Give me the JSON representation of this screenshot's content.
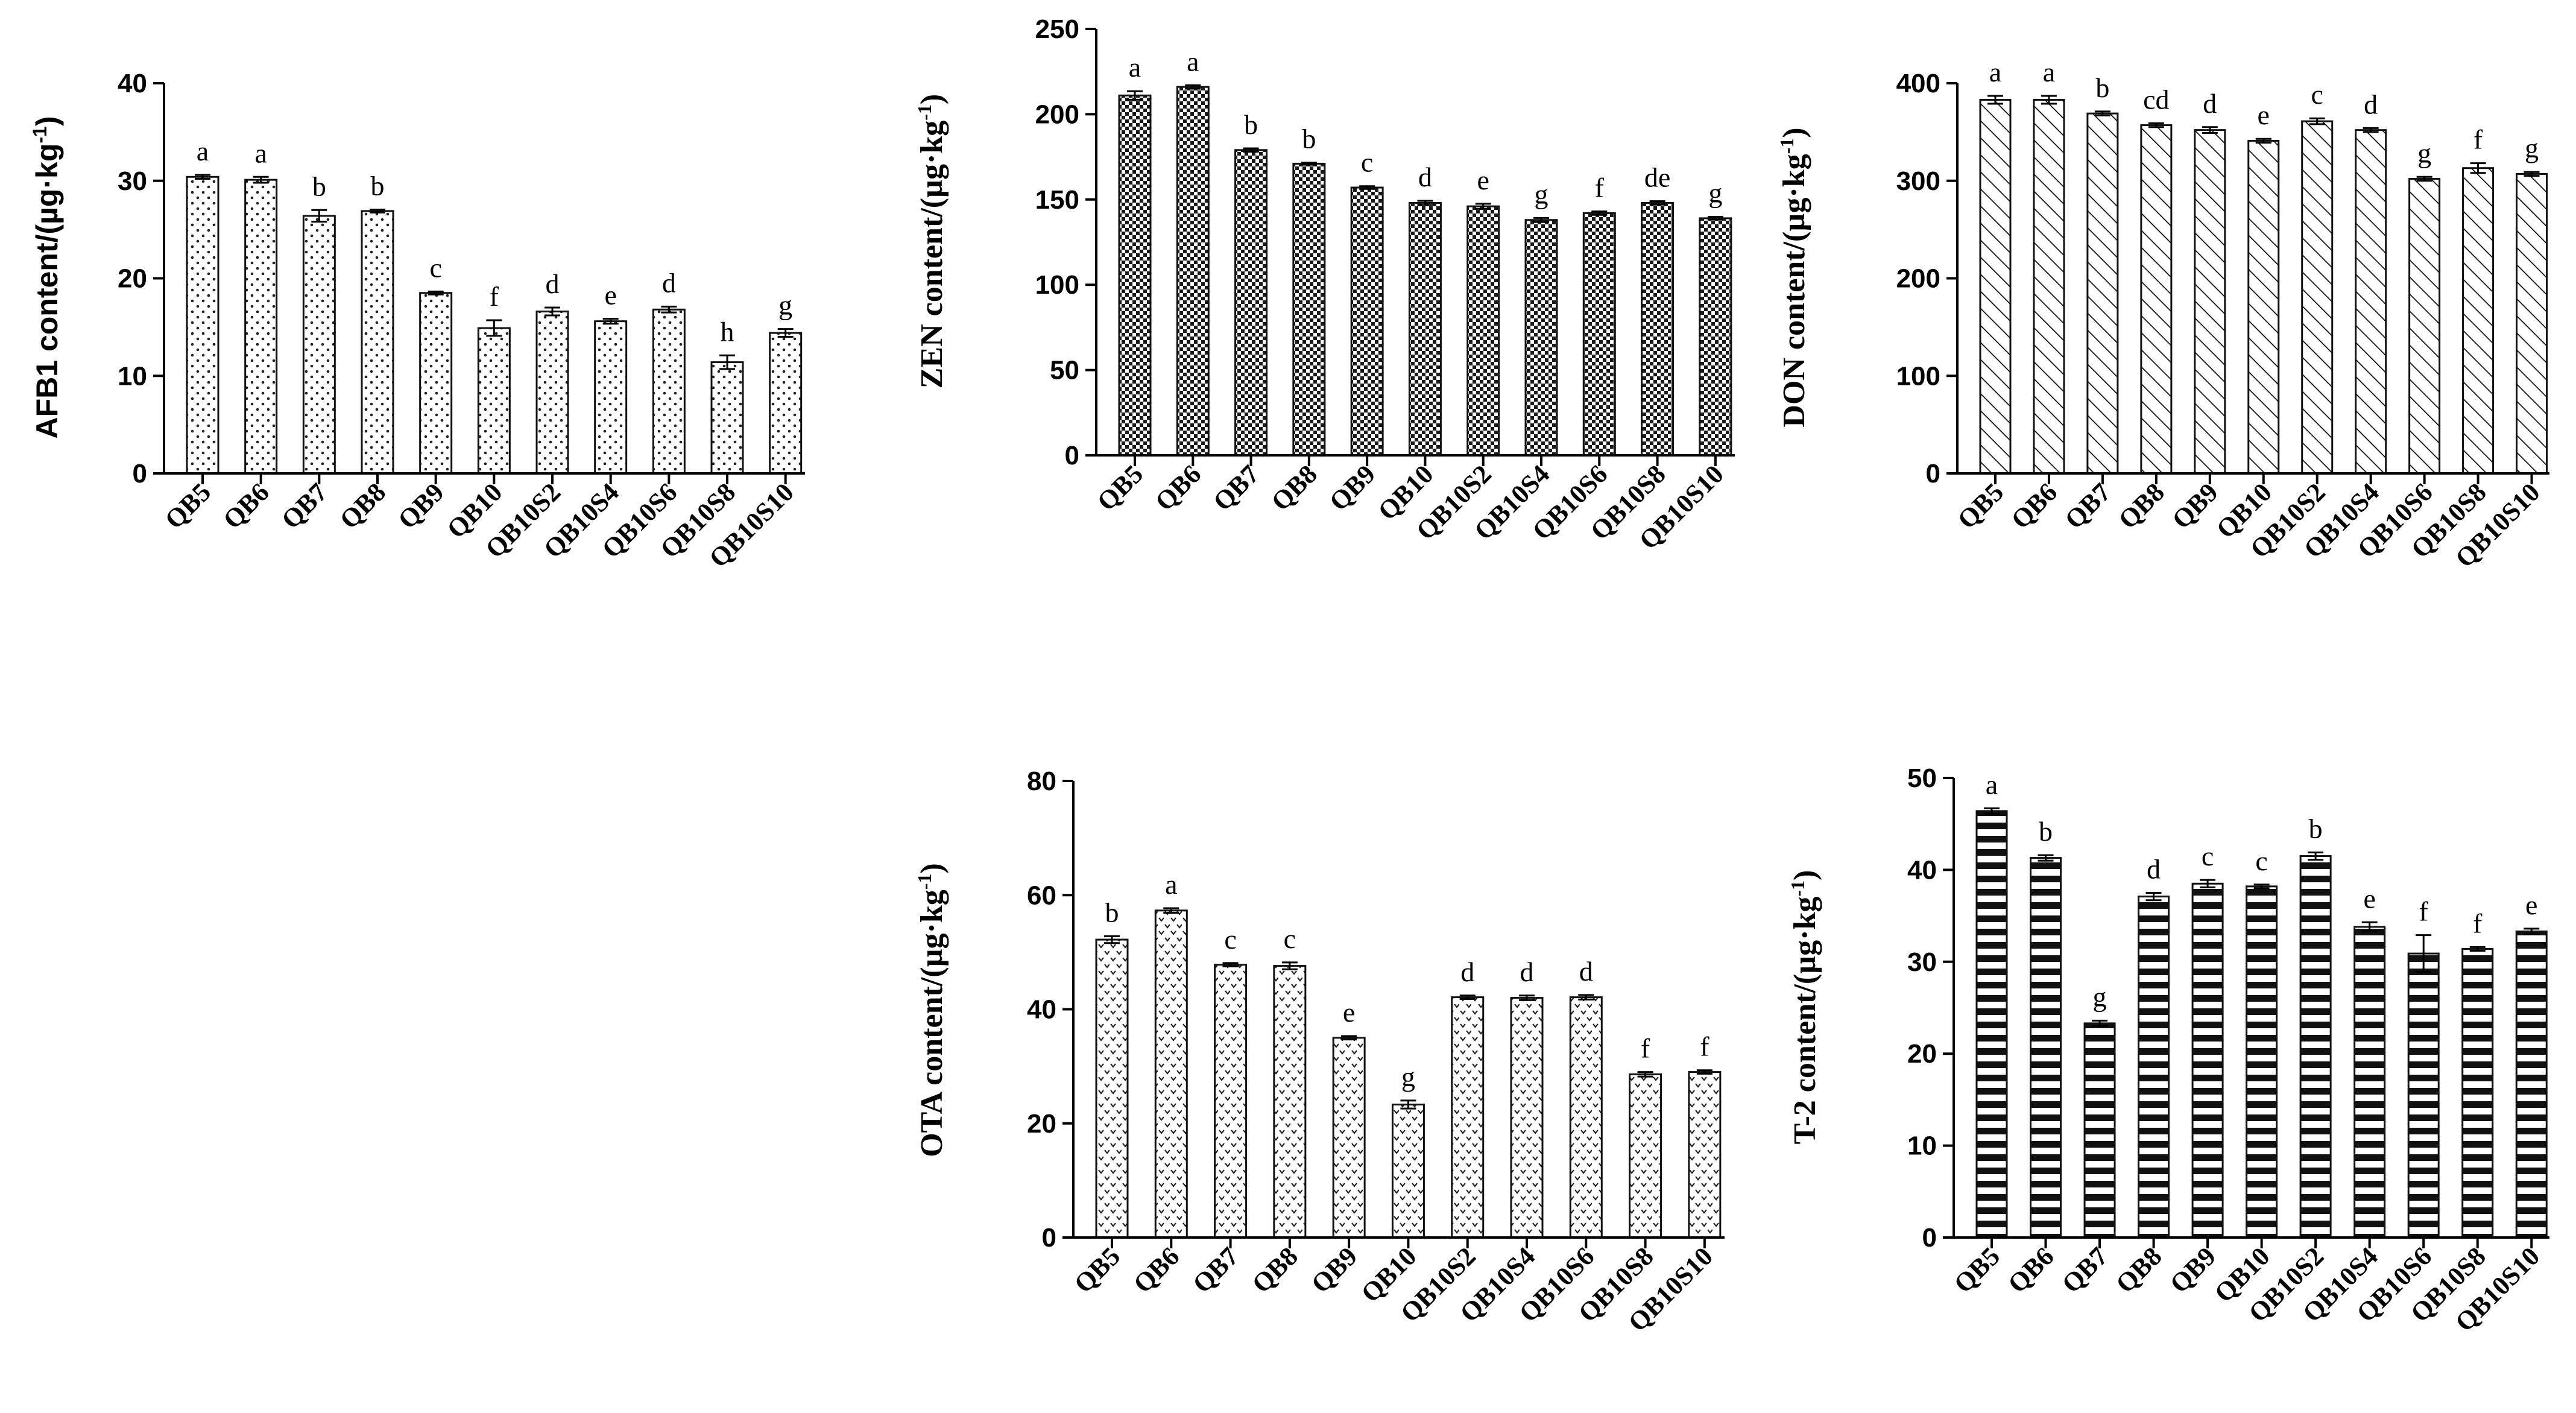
{
  "chart_data": [
    {
      "id": "afb1",
      "type": "bar",
      "pattern": "dots",
      "title": "",
      "ylabel": "AFB1 content/(µg·kg",
      "ylabel_sup": "-1",
      "ylabel_tail": ")",
      "ylabel_style": "sans",
      "ylim": [
        0,
        40
      ],
      "yticks": [
        0,
        10,
        20,
        30,
        40
      ],
      "ytick_labels": [
        "0",
        "10",
        "20",
        "30",
        "40"
      ],
      "categories": [
        "QB5",
        "QB6",
        "QB7",
        "QB8",
        "QB9",
        "QB10",
        "QB10S2",
        "QB10S4",
        "QB10S6",
        "QB10S8",
        "QB10S10"
      ],
      "values": [
        30.4,
        30.1,
        26.4,
        26.9,
        18.5,
        14.9,
        16.6,
        15.6,
        16.8,
        11.4,
        14.4
      ],
      "errors": [
        0.2,
        0.3,
        0.6,
        0.15,
        0.15,
        0.8,
        0.4,
        0.25,
        0.3,
        0.7,
        0.4
      ],
      "labels": [
        "a",
        "a",
        "b",
        "b",
        "c",
        "f",
        "d",
        "e",
        "d",
        "h",
        "g"
      ]
    },
    {
      "id": "zen",
      "type": "bar",
      "pattern": "checker",
      "title": "",
      "ylabel": "ZEN content/(µg·kg",
      "ylabel_sup": "-1",
      "ylabel_tail": ")",
      "ylabel_style": "serif",
      "ylim": [
        0,
        250
      ],
      "yticks": [
        0,
        50,
        100,
        150,
        200,
        250
      ],
      "ytick_labels": [
        "0",
        "50",
        "100",
        "150",
        "200",
        "250"
      ],
      "categories": [
        "QB5",
        "QB6",
        "QB7",
        "QB8",
        "QB9",
        "QB10",
        "QB10S2",
        "QB10S4",
        "QB10S6",
        "QB10S8",
        "QB10S10"
      ],
      "values": [
        211,
        216,
        179,
        171,
        157,
        148,
        146,
        138,
        142,
        148,
        139
      ],
      "errors": [
        2.5,
        1.0,
        1.0,
        0.6,
        0.8,
        1.2,
        1.5,
        1.2,
        1.0,
        1.0,
        0.8
      ],
      "labels": [
        "a",
        "a",
        "b",
        "b",
        "c",
        "d",
        "e",
        "g",
        "f",
        "de",
        "g"
      ]
    },
    {
      "id": "don",
      "type": "bar",
      "pattern": "diagonal",
      "title": "",
      "ylabel": "DON content/(µg·kg",
      "ylabel_sup": "-1",
      "ylabel_tail": ")",
      "ylabel_style": "serif",
      "ylim": [
        0,
        400
      ],
      "yticks": [
        0,
        100,
        200,
        300,
        400
      ],
      "ytick_labels": [
        "0",
        "100",
        "200",
        "300",
        "400"
      ],
      "categories": [
        "QB5",
        "QB6",
        "QB7",
        "QB8",
        "QB9",
        "QB10",
        "QB10S2",
        "QB10S4",
        "QB10S6",
        "QB10S8",
        "QB10S10"
      ],
      "values": [
        383,
        383,
        369,
        357,
        352,
        341,
        361,
        352,
        302,
        313,
        307
      ],
      "errors": [
        4,
        4,
        2,
        2,
        3,
        2,
        3,
        2,
        2,
        5,
        2
      ],
      "labels": [
        "a",
        "a",
        "b",
        "cd",
        "d",
        "e",
        "c",
        "d",
        "g",
        "f",
        "g"
      ]
    },
    {
      "id": "ota",
      "type": "bar",
      "pattern": "zigzag",
      "title": "",
      "ylabel": "OTA content/(µg·kg",
      "ylabel_sup": "-1",
      "ylabel_tail": ")",
      "ylabel_style": "serif",
      "ylim": [
        0,
        80
      ],
      "yticks": [
        0,
        20,
        40,
        60,
        80
      ],
      "ytick_labels": [
        "0",
        "20",
        "40",
        "60",
        "80"
      ],
      "categories": [
        "QB5",
        "QB6",
        "QB7",
        "QB8",
        "QB9",
        "QB10",
        "QB10S2",
        "QB10S4",
        "QB10S6",
        "QB10S8",
        "QB10S10"
      ],
      "values": [
        52.2,
        57.3,
        47.8,
        47.6,
        35.0,
        23.3,
        42.1,
        42.0,
        42.1,
        28.6,
        29.0
      ],
      "errors": [
        0.6,
        0.4,
        0.3,
        0.6,
        0.3,
        0.7,
        0.3,
        0.4,
        0.4,
        0.4,
        0.3
      ],
      "labels": [
        "b",
        "a",
        "c",
        "c",
        "e",
        "g",
        "d",
        "d",
        "d",
        "f",
        "f"
      ]
    },
    {
      "id": "t2",
      "type": "bar",
      "pattern": "hstripes",
      "title": "",
      "ylabel": "T-2 content/(µg·kg",
      "ylabel_sup": "-1",
      "ylabel_tail": ")",
      "ylabel_style": "serif",
      "ylim": [
        0,
        50
      ],
      "yticks": [
        0,
        10,
        20,
        30,
        40,
        50
      ],
      "ytick_labels": [
        "0",
        "10",
        "20",
        "30",
        "40",
        "50"
      ],
      "categories": [
        "QB5",
        "QB6",
        "QB7",
        "QB8",
        "QB9",
        "QB10",
        "QB10S2",
        "QB10S4",
        "QB10S6",
        "QB10S8",
        "QB10S10"
      ],
      "values": [
        46.4,
        41.3,
        23.3,
        37.1,
        38.5,
        38.2,
        41.5,
        33.8,
        30.9,
        31.4,
        33.3
      ],
      "errors": [
        0.3,
        0.3,
        0.3,
        0.4,
        0.4,
        0.2,
        0.4,
        0.5,
        2.0,
        0.2,
        0.3
      ],
      "labels": [
        "a",
        "b",
        "g",
        "d",
        "c",
        "c",
        "b",
        "e",
        "f",
        "f",
        "e"
      ]
    }
  ]
}
